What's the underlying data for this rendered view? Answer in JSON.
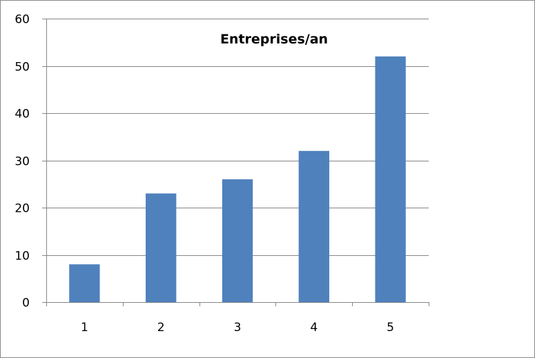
{
  "chart_data": {
    "type": "bar",
    "title": "Entreprises/an",
    "categories": [
      "1",
      "2",
      "3",
      "4",
      "5"
    ],
    "values": [
      8,
      23,
      26,
      32,
      52
    ],
    "xlabel": "",
    "ylabel": "",
    "ylim": [
      0,
      60
    ],
    "yticks": [
      0,
      10,
      20,
      30,
      40,
      50,
      60
    ],
    "grid": true,
    "legend": "none",
    "bar_color": "#4f81bd",
    "gridline_color": "#868686",
    "axis_color": "#868686"
  }
}
